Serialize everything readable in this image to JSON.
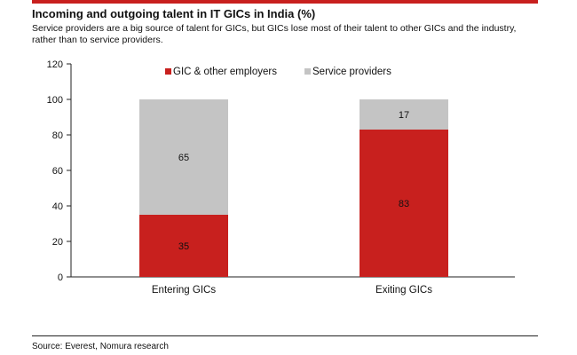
{
  "header": {
    "title": "Incoming and outgoing talent in IT GICs in India (%)",
    "subtitle": "Service providers are a big source of talent for GICs, but GICs lose most of their talent to other GICs and the industry, rather than to service providers."
  },
  "footer": {
    "source": "Source: Everest, Nomura research"
  },
  "colors": {
    "accent": "#c8201e",
    "gic": "#c8201e",
    "service": "#c4c4c4"
  },
  "chart_data": {
    "type": "bar",
    "stacked": true,
    "categories": [
      "Entering GICs",
      "Exiting GICs"
    ],
    "series": [
      {
        "name": "GIC & other employers",
        "values": [
          35,
          83
        ],
        "color": "#c8201e"
      },
      {
        "name": "Service providers",
        "values": [
          65,
          17
        ],
        "color": "#c4c4c4"
      }
    ],
    "ylim": [
      0,
      120
    ],
    "yticks": [
      0,
      20,
      40,
      60,
      80,
      100,
      120
    ],
    "legend_position": "top",
    "grid": false
  }
}
